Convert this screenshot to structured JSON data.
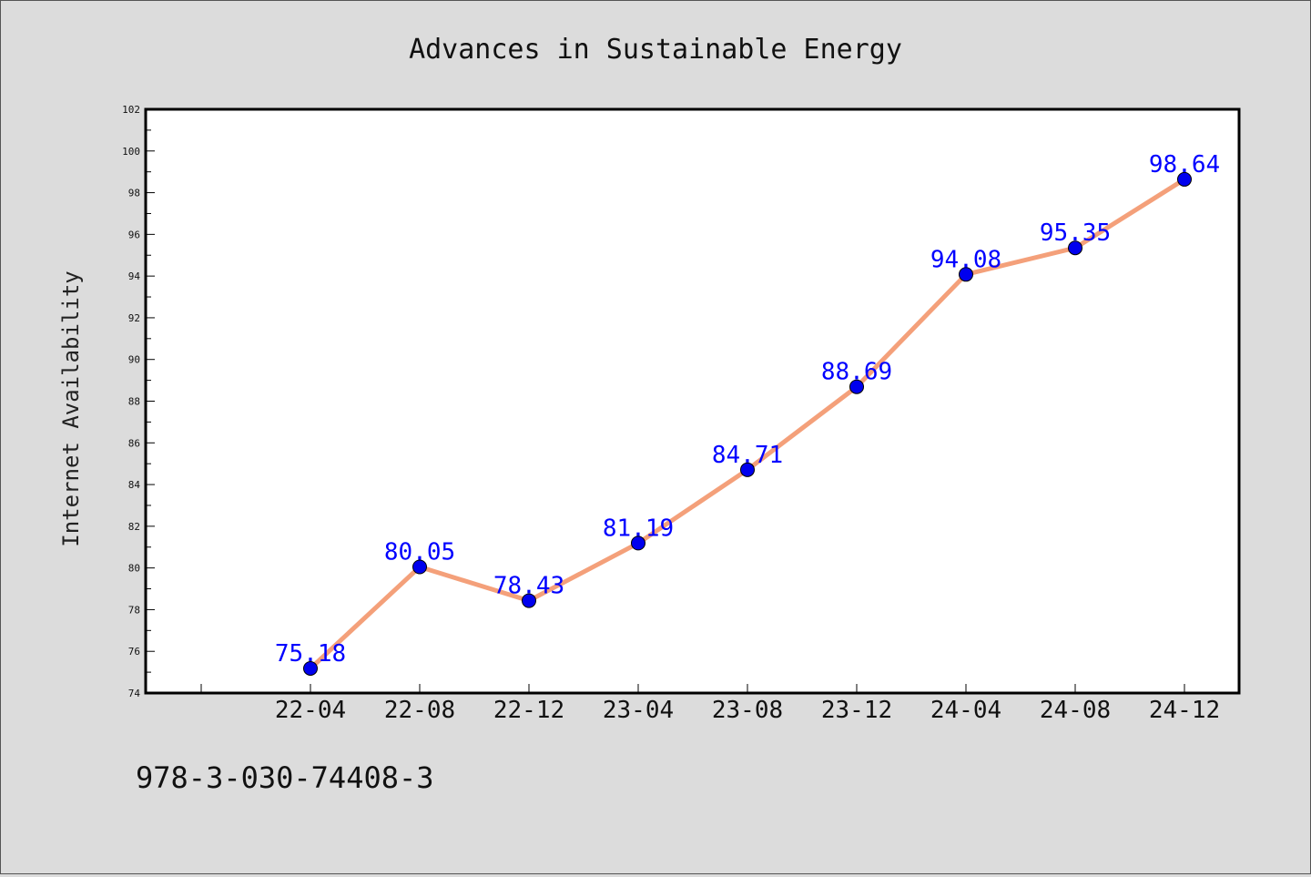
{
  "chart_data": {
    "type": "line",
    "title": "Advances in Sustainable Energy",
    "xlabel": "",
    "ylabel": "Internet Availability",
    "categories": [
      "22-04",
      "22-08",
      "22-12",
      "23-04",
      "23-08",
      "23-12",
      "24-04",
      "24-08",
      "24-12"
    ],
    "values": [
      75.18,
      80.05,
      78.43,
      81.19,
      84.71,
      88.69,
      94.08,
      95.35,
      98.64
    ],
    "data_labels": [
      "75.18",
      "80.05",
      "78.43",
      "81.19",
      "84.71",
      "88.69",
      "94.08",
      "95.35",
      "98.64"
    ],
    "ylim": [
      74,
      102
    ],
    "yticks": [
      74,
      76,
      78,
      80,
      82,
      84,
      86,
      88,
      90,
      92,
      94,
      96,
      98,
      100,
      102
    ],
    "grid": false,
    "line_color": "#f4a07a",
    "marker_color": "#0000ee",
    "label_color": "#0000ff"
  },
  "footnote": "978-3-030-74408-3"
}
